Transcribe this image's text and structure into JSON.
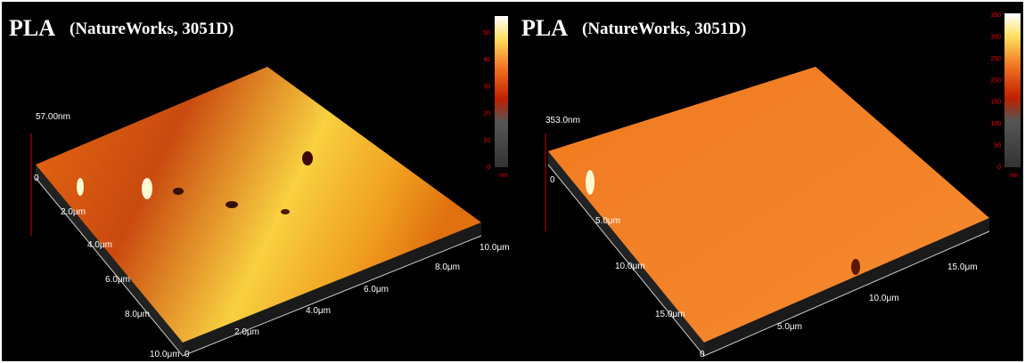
{
  "panels": [
    {
      "title": "PLA",
      "subtitle": "(NatureWorks, 3051D)",
      "z_label": "57.00nm",
      "colorbar_ticks": [
        50,
        40,
        30,
        20,
        10,
        0
      ],
      "colorbar_unit": "nm",
      "left_axis_labels": [
        "0",
        "2.0μm",
        "4.0μm",
        "6.0μm",
        "8.0μm",
        "10.0μm"
      ],
      "right_axis_labels": [
        "0",
        "2.0μm",
        "4.0μm",
        "6.0μm",
        "8.0μm",
        "10.0μm"
      ]
    },
    {
      "title": "PLA",
      "subtitle": "(NatureWorks, 3051D)",
      "z_label": "353.0nm",
      "colorbar_ticks": [
        350,
        300,
        250,
        200,
        150,
        100,
        50,
        0
      ],
      "colorbar_unit": "nm",
      "left_axis_labels": [
        "0",
        "5.0μm",
        "10.0μm",
        "15.0μm"
      ],
      "right_axis_labels": [
        "0",
        "5.0μm",
        "10.0μm",
        "15.0μm"
      ]
    }
  ]
}
